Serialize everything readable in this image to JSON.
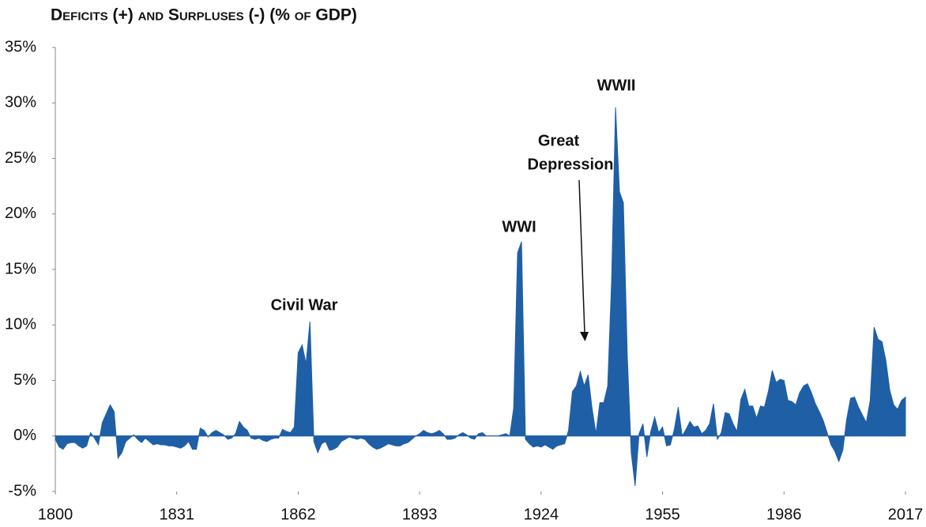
{
  "chart_data": {
    "type": "area",
    "title": "Deficits (+) and Surpluses (-) (% of GDP)",
    "color": "#1f5fa6",
    "x": [
      1800,
      1801,
      1802,
      1803,
      1804,
      1805,
      1806,
      1807,
      1808,
      1809,
      1810,
      1811,
      1812,
      1813,
      1814,
      1815,
      1816,
      1817,
      1818,
      1819,
      1820,
      1821,
      1822,
      1823,
      1824,
      1825,
      1826,
      1827,
      1828,
      1829,
      1830,
      1831,
      1832,
      1833,
      1834,
      1835,
      1836,
      1837,
      1838,
      1839,
      1840,
      1841,
      1842,
      1843,
      1844,
      1845,
      1846,
      1847,
      1848,
      1849,
      1850,
      1851,
      1852,
      1853,
      1854,
      1855,
      1856,
      1857,
      1858,
      1859,
      1860,
      1861,
      1862,
      1863,
      1864,
      1865,
      1866,
      1867,
      1868,
      1869,
      1870,
      1871,
      1872,
      1873,
      1874,
      1875,
      1876,
      1877,
      1878,
      1879,
      1880,
      1881,
      1882,
      1883,
      1884,
      1885,
      1886,
      1887,
      1888,
      1889,
      1890,
      1891,
      1892,
      1893,
      1894,
      1895,
      1896,
      1897,
      1898,
      1899,
      1900,
      1901,
      1902,
      1903,
      1904,
      1905,
      1906,
      1907,
      1908,
      1909,
      1910,
      1911,
      1912,
      1913,
      1914,
      1915,
      1916,
      1917,
      1918,
      1919,
      1920,
      1921,
      1922,
      1923,
      1924,
      1925,
      1926,
      1927,
      1928,
      1929,
      1930,
      1931,
      1932,
      1933,
      1934,
      1935,
      1936,
      1937,
      1938,
      1939,
      1940,
      1941,
      1942,
      1943,
      1944,
      1945,
      1946,
      1947,
      1948,
      1949,
      1950,
      1951,
      1952,
      1953,
      1954,
      1955,
      1956,
      1957,
      1958,
      1959,
      1960,
      1961,
      1962,
      1963,
      1964,
      1965,
      1966,
      1967,
      1968,
      1969,
      1970,
      1971,
      1972,
      1973,
      1974,
      1975,
      1976,
      1977,
      1978,
      1979,
      1980,
      1981,
      1982,
      1983,
      1984,
      1985,
      1986,
      1987,
      1988,
      1989,
      1990,
      1991,
      1992,
      1993,
      1994,
      1995,
      1996,
      1997,
      1998,
      1999,
      2000,
      2001,
      2002,
      2003,
      2004,
      2005,
      2006,
      2007,
      2008,
      2009,
      2010,
      2011,
      2012,
      2013,
      2014,
      2015,
      2016,
      2017
    ],
    "values": [
      -0.3,
      -1.0,
      -1.2,
      -0.7,
      -0.6,
      -0.6,
      -0.9,
      -1.1,
      -0.9,
      0.3,
      -0.2,
      -0.8,
      1.2,
      2.0,
      2.8,
      2.2,
      -2.0,
      -1.5,
      -0.5,
      -0.2,
      0.1,
      -0.3,
      -0.6,
      -0.2,
      -0.5,
      -0.8,
      -0.7,
      -0.8,
      -0.8,
      -0.9,
      -0.9,
      -1.0,
      -1.1,
      -0.9,
      -0.5,
      -1.2,
      -1.2,
      0.7,
      0.5,
      -0.1,
      0.3,
      0.5,
      0.3,
      0.1,
      -0.3,
      -0.2,
      0.2,
      1.3,
      0.8,
      0.5,
      -0.2,
      -0.3,
      -0.2,
      -0.4,
      -0.5,
      -0.3,
      -0.2,
      -0.2,
      0.6,
      0.4,
      0.3,
      0.8,
      7.5,
      8.2,
      6.5,
      10.3,
      -0.5,
      -1.5,
      -0.7,
      -0.5,
      -1.3,
      -1.2,
      -1.0,
      -0.5,
      -0.3,
      -0.1,
      -0.2,
      -0.3,
      -0.2,
      -0.3,
      -0.7,
      -1.0,
      -1.2,
      -1.1,
      -0.9,
      -0.7,
      -0.8,
      -0.9,
      -0.9,
      -0.7,
      -0.6,
      -0.3,
      0.0,
      0.2,
      0.5,
      0.3,
      0.2,
      0.3,
      0.5,
      0.2,
      -0.3,
      -0.3,
      -0.2,
      0.1,
      0.3,
      0.1,
      -0.2,
      -0.3,
      0.2,
      0.3,
      0.0,
      0.0,
      0.0,
      0.0,
      0.1,
      0.2,
      0.0,
      2.5,
      16.5,
      17.5,
      -0.3,
      -0.7,
      -1.0,
      -0.9,
      -1.0,
      -0.8,
      -1.0,
      -1.2,
      -0.9,
      -0.8,
      -0.7,
      0.5,
      4.0,
      4.5,
      5.8,
      4.5,
      5.5,
      2.5,
      0.2,
      3.0,
      3.0,
      4.5,
      14.0,
      29.6,
      22.0,
      21.0,
      7.2,
      -1.5,
      -4.5,
      0.2,
      1.1,
      -1.9,
      0.4,
      1.7,
      0.3,
      0.8,
      -0.9,
      -0.8,
      0.6,
      2.6,
      0.0,
      0.6,
      1.3,
      0.8,
      0.9,
      0.2,
      0.5,
      1.1,
      2.9,
      -0.3,
      0.3,
      2.1,
      2.0,
      1.1,
      0.4,
      3.3,
      4.2,
      2.7,
      2.7,
      1.6,
      2.7,
      2.6,
      4.0,
      5.9,
      4.8,
      5.1,
      5.0,
      3.2,
      3.1,
      2.8,
      3.9,
      4.5,
      4.7,
      3.9,
      2.9,
      2.2,
      1.4,
      0.3,
      -0.8,
      -1.4,
      -2.3,
      -1.3,
      1.5,
      3.4,
      3.5,
      2.6,
      1.9,
      1.2,
      3.2,
      9.8,
      8.7,
      8.5,
      6.8,
      4.1,
      2.8,
      2.4,
      3.2,
      3.5
    ],
    "xlim": [
      1800,
      2017
    ],
    "xticks": [
      1800,
      1831,
      1862,
      1893,
      1924,
      1955,
      1986,
      2017
    ],
    "ylim": [
      -5,
      35
    ],
    "yticks": [
      {
        "value": -5,
        "label": "-5%"
      },
      {
        "value": 0,
        "label": "0%"
      },
      {
        "value": 5,
        "label": "5%"
      },
      {
        "value": 10,
        "label": "10%"
      },
      {
        "value": 15,
        "label": "15%"
      },
      {
        "value": 20,
        "label": "20%"
      },
      {
        "value": 25,
        "label": "25%"
      },
      {
        "value": 30,
        "label": "30%"
      },
      {
        "value": 35,
        "label": "35%"
      }
    ],
    "grid": false,
    "annotations": [
      "Civil War",
      "WWI",
      "Great",
      "Depression",
      "WWII"
    ]
  }
}
